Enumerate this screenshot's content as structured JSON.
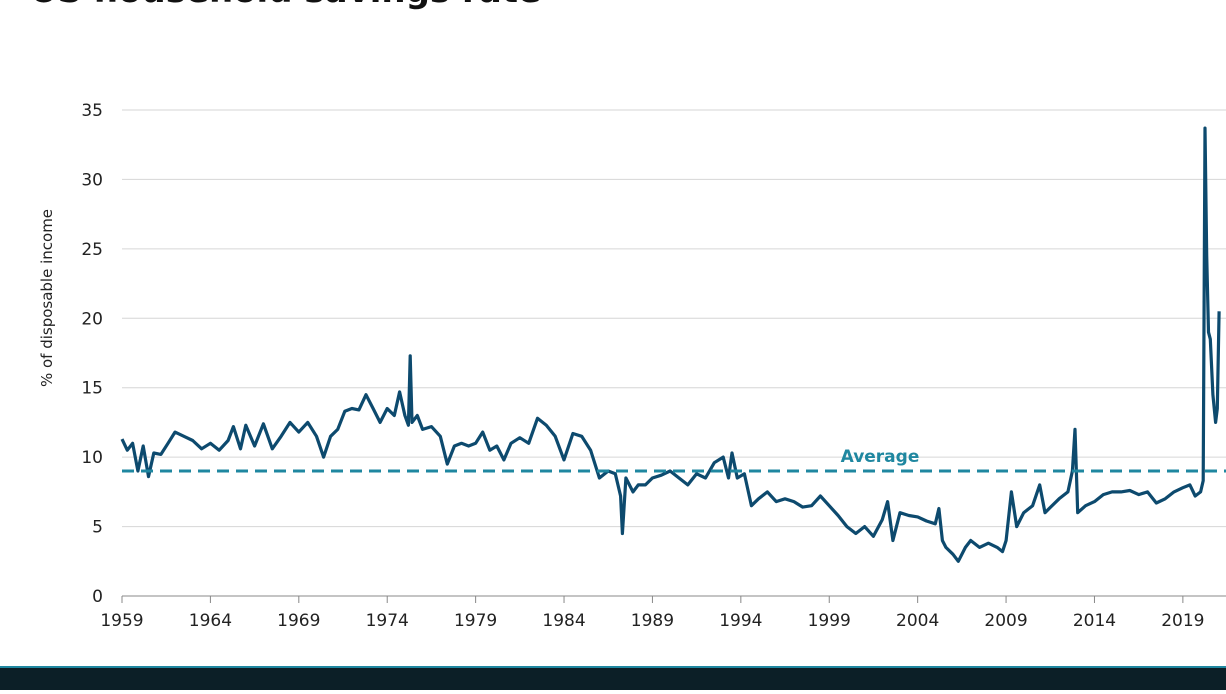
{
  "chart_data": {
    "type": "line",
    "title": "US household savings rate",
    "y_label": "% of disposable income",
    "average": 9,
    "average_label": "Average",
    "average_color": "#1f87a0",
    "xlim": [
      1959,
      2021.1
    ],
    "xticks": [
      1959,
      1964,
      1969,
      1974,
      1979,
      1984,
      1989,
      1994,
      1999,
      2004,
      2009,
      2014,
      2019
    ],
    "ylim": [
      0,
      35
    ],
    "yticks": [
      0,
      5,
      10,
      15,
      20,
      25,
      30,
      35
    ],
    "grid": true,
    "series": [
      {
        "name": "Savings rate",
        "color": "#0d4a6e",
        "x": [
          1959.0,
          1959.3,
          1959.6,
          1959.9,
          1960.2,
          1960.5,
          1960.8,
          1961.2,
          1961.6,
          1962.0,
          1962.5,
          1963.0,
          1963.5,
          1964.0,
          1964.5,
          1965.0,
          1965.3,
          1965.7,
          1966.0,
          1966.5,
          1967.0,
          1967.5,
          1968.0,
          1968.5,
          1969.0,
          1969.5,
          1970.0,
          1970.4,
          1970.8,
          1971.2,
          1971.6,
          1972.0,
          1972.4,
          1972.8,
          1973.2,
          1973.6,
          1974.0,
          1974.4,
          1974.7,
          1975.0,
          1975.2,
          1975.3,
          1975.4,
          1975.7,
          1976.0,
          1976.5,
          1977.0,
          1977.4,
          1977.8,
          1978.2,
          1978.6,
          1979.0,
          1979.4,
          1979.8,
          1980.2,
          1980.6,
          1981.0,
          1981.5,
          1982.0,
          1982.5,
          1983.0,
          1983.5,
          1984.0,
          1984.5,
          1985.0,
          1985.5,
          1986.0,
          1986.5,
          1986.9,
          1987.2,
          1987.3,
          1987.5,
          1987.9,
          1988.2,
          1988.6,
          1989.0,
          1989.5,
          1990.0,
          1990.5,
          1991.0,
          1991.5,
          1992.0,
          1992.5,
          1993.0,
          1993.3,
          1993.5,
          1993.8,
          1994.2,
          1994.6,
          1995.0,
          1995.5,
          1996.0,
          1996.5,
          1997.0,
          1997.5,
          1998.0,
          1998.5,
          1999.0,
          1999.5,
          2000.0,
          2000.5,
          2001.0,
          2001.5,
          2002.0,
          2002.3,
          2002.6,
          2003.0,
          2003.5,
          2004.0,
          2004.5,
          2005.0,
          2005.2,
          2005.4,
          2005.6,
          2006.0,
          2006.3,
          2006.7,
          2007.0,
          2007.5,
          2008.0,
          2008.5,
          2008.8,
          2009.0,
          2009.3,
          2009.6,
          2010.0,
          2010.5,
          2010.9,
          2011.2,
          2011.6,
          2012.0,
          2012.5,
          2012.75,
          2012.9,
          2013.05,
          2013.5,
          2014.0,
          2014.5,
          2015.0,
          2015.5,
          2016.0,
          2016.5,
          2017.0,
          2017.5,
          2018.0,
          2018.5,
          2019.0,
          2019.4,
          2019.7,
          2020.0,
          2020.15,
          2020.25,
          2020.35,
          2020.45,
          2020.55,
          2020.7,
          2020.85,
          2020.95,
          2021.05
        ],
        "values": [
          11.3,
          10.5,
          11.0,
          9.0,
          10.8,
          8.6,
          10.3,
          10.2,
          11.0,
          11.8,
          11.5,
          11.2,
          10.6,
          11.0,
          10.5,
          11.2,
          12.2,
          10.6,
          12.3,
          10.8,
          12.4,
          10.6,
          11.5,
          12.5,
          11.8,
          12.5,
          11.5,
          10.0,
          11.5,
          12.0,
          13.3,
          13.5,
          13.4,
          14.5,
          13.5,
          12.5,
          13.5,
          13.0,
          14.7,
          13.0,
          12.3,
          17.3,
          12.5,
          13.0,
          12.0,
          12.2,
          11.5,
          9.5,
          10.8,
          11.0,
          10.8,
          11.0,
          11.8,
          10.5,
          10.8,
          9.8,
          11.0,
          11.4,
          11.0,
          12.8,
          12.3,
          11.5,
          9.8,
          11.7,
          11.5,
          10.5,
          8.5,
          9.0,
          8.8,
          7.2,
          4.5,
          8.5,
          7.5,
          8.0,
          8.0,
          8.5,
          8.7,
          9.0,
          8.5,
          8.0,
          8.8,
          8.5,
          9.6,
          10.0,
          8.5,
          10.3,
          8.5,
          8.8,
          6.5,
          7.0,
          7.5,
          6.8,
          7.0,
          6.8,
          6.4,
          6.5,
          7.2,
          6.5,
          5.8,
          5.0,
          4.5,
          5.0,
          4.3,
          5.5,
          6.8,
          4.0,
          6.0,
          5.8,
          5.7,
          5.4,
          5.2,
          6.3,
          4.0,
          3.5,
          3.0,
          2.5,
          3.5,
          4.0,
          3.5,
          3.8,
          3.5,
          3.2,
          4.0,
          7.5,
          5.0,
          6.0,
          6.5,
          8.0,
          6.0,
          6.5,
          7.0,
          7.5,
          9.0,
          12.0,
          6.0,
          6.5,
          6.8,
          7.3,
          7.5,
          7.5,
          7.6,
          7.3,
          7.5,
          6.7,
          7.0,
          7.5,
          7.8,
          8.0,
          7.2,
          7.5,
          8.3,
          33.7,
          24.5,
          19.0,
          18.5,
          14.5,
          12.5,
          13.5,
          20.5
        ]
      }
    ]
  }
}
